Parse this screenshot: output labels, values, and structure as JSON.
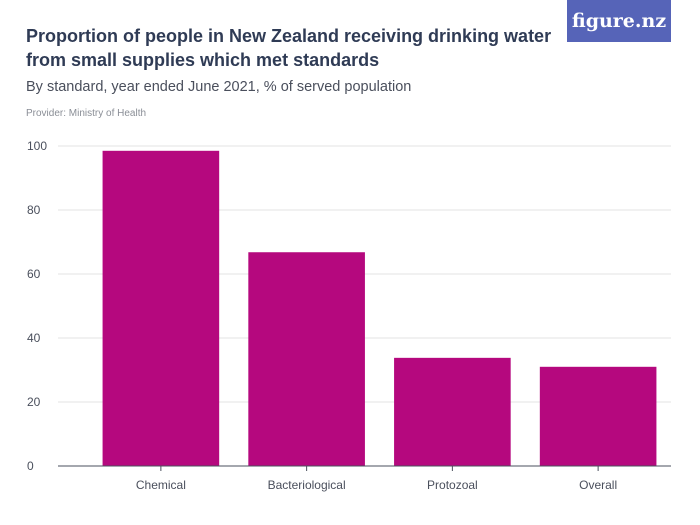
{
  "header": {
    "title": "Proportion of people in New Zealand receiving drinking water from small supplies which met standards",
    "subtitle": "By standard, year ended June 2021, % of served population",
    "provider": "Provider: Ministry of Health"
  },
  "brand": {
    "text": "figure.nz",
    "background": "#5664b8"
  },
  "colors": {
    "bar": "#b5087e",
    "grid": "#e3e3e3",
    "axis": "#4a4f5c"
  },
  "chart_data": {
    "type": "bar",
    "categories": [
      "Chemical",
      "Bacteriological",
      "Protozoal",
      "Overall"
    ],
    "values": [
      98.5,
      66.8,
      33.8,
      31.0
    ],
    "xlabel": "",
    "ylabel": "",
    "ylim": [
      0,
      100
    ],
    "yticks": [
      0,
      20,
      40,
      60,
      80,
      100
    ],
    "grid": true,
    "legend": "none"
  }
}
